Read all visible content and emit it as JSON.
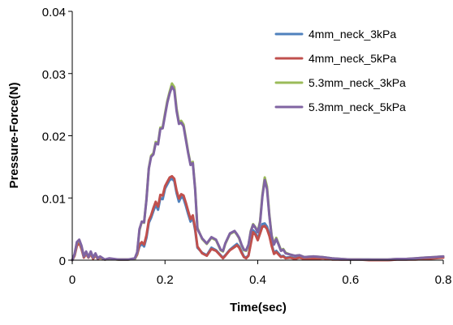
{
  "chart_data": {
    "type": "line",
    "title": "",
    "xlabel": "Time(sec)",
    "ylabel": "Pressure-Force(N)",
    "xlim": [
      0,
      0.8
    ],
    "ylim": [
      0,
      0.04
    ],
    "xticks": [
      {
        "value": 0,
        "label": "0"
      },
      {
        "value": 0.2,
        "label": "0.2"
      },
      {
        "value": 0.4,
        "label": "0.4"
      },
      {
        "value": 0.6,
        "label": "0.6"
      },
      {
        "value": 0.8,
        "label": "0.8"
      }
    ],
    "yticks": [
      {
        "value": 0,
        "label": "0"
      },
      {
        "value": 0.01,
        "label": "0.01"
      },
      {
        "value": 0.02,
        "label": "0.02"
      },
      {
        "value": 0.03,
        "label": "0.03"
      },
      {
        "value": 0.04,
        "label": "0.04"
      }
    ],
    "grid": false,
    "legend_position": "top-right",
    "series": [
      {
        "name": "4mm_neck_3kPa",
        "color": "#4f81bd",
        "x": [
          0,
          0.005,
          0.01,
          0.015,
          0.02,
          0.025,
          0.03,
          0.035,
          0.04,
          0.045,
          0.05,
          0.055,
          0.06,
          0.07,
          0.08,
          0.1,
          0.12,
          0.135,
          0.14,
          0.145,
          0.15,
          0.155,
          0.16,
          0.165,
          0.17,
          0.175,
          0.18,
          0.185,
          0.19,
          0.195,
          0.2,
          0.205,
          0.21,
          0.215,
          0.22,
          0.225,
          0.23,
          0.235,
          0.24,
          0.245,
          0.25,
          0.255,
          0.26,
          0.265,
          0.27,
          0.28,
          0.29,
          0.3,
          0.31,
          0.32,
          0.325,
          0.33,
          0.34,
          0.35,
          0.355,
          0.36,
          0.365,
          0.37,
          0.375,
          0.38,
          0.385,
          0.39,
          0.395,
          0.4,
          0.405,
          0.41,
          0.415,
          0.42,
          0.425,
          0.43,
          0.435,
          0.44,
          0.445,
          0.45,
          0.455,
          0.46,
          0.47,
          0.48,
          0.49,
          0.5,
          0.52,
          0.54,
          0.56,
          0.58,
          0.6,
          0.62,
          0.64,
          0.66,
          0.68,
          0.7,
          0.72,
          0.74,
          0.76,
          0.78,
          0.8
        ],
        "values": [
          0,
          0.0008,
          0.0025,
          0.003,
          0.002,
          0.0005,
          0.0012,
          0.0005,
          0.0012,
          0.0003,
          0.0009,
          0.0003,
          0.0005,
          0.0001,
          0.0002,
          0.0001,
          0.0001,
          0.0002,
          0.001,
          0.0022,
          0.0026,
          0.0022,
          0.0036,
          0.006,
          0.0068,
          0.0079,
          0.0089,
          0.0081,
          0.01,
          0.0098,
          0.0115,
          0.0122,
          0.0129,
          0.0131,
          0.0127,
          0.0108,
          0.0094,
          0.0102,
          0.0099,
          0.0087,
          0.0074,
          0.0062,
          0.0068,
          0.0048,
          0.002,
          0.0012,
          0.0008,
          0.002,
          0.0016,
          0.0008,
          0.0004,
          0.0008,
          0.0017,
          0.0023,
          0.0026,
          0.0022,
          0.0014,
          0.0006,
          0.0004,
          0.0008,
          0.0028,
          0.0048,
          0.0044,
          0.0035,
          0.0046,
          0.0058,
          0.0059,
          0.0054,
          0.0042,
          0.0026,
          0.0012,
          0.0015,
          0.0011,
          0.0006,
          0.0007,
          0.0004,
          0.0005,
          0.0003,
          0.0005,
          0.0002,
          0.0003,
          0.0004,
          0.0002,
          0.0001,
          0.0001,
          0.0001,
          0.0001,
          0,
          0,
          0.0001,
          0.0001,
          0.0002,
          0.0003,
          0.0004,
          0.0005
        ]
      },
      {
        "name": "4mm_neck_5kPa",
        "color": "#c0504d",
        "x": [
          0,
          0.005,
          0.01,
          0.015,
          0.02,
          0.025,
          0.03,
          0.035,
          0.04,
          0.045,
          0.05,
          0.055,
          0.06,
          0.07,
          0.08,
          0.1,
          0.12,
          0.135,
          0.14,
          0.145,
          0.15,
          0.155,
          0.16,
          0.165,
          0.17,
          0.175,
          0.18,
          0.185,
          0.19,
          0.195,
          0.2,
          0.205,
          0.21,
          0.215,
          0.22,
          0.225,
          0.23,
          0.235,
          0.24,
          0.245,
          0.25,
          0.255,
          0.26,
          0.265,
          0.27,
          0.28,
          0.29,
          0.3,
          0.31,
          0.32,
          0.325,
          0.33,
          0.34,
          0.35,
          0.355,
          0.36,
          0.365,
          0.37,
          0.375,
          0.38,
          0.385,
          0.39,
          0.395,
          0.4,
          0.405,
          0.41,
          0.415,
          0.42,
          0.425,
          0.43,
          0.435,
          0.44,
          0.445,
          0.45,
          0.455,
          0.46,
          0.47,
          0.48,
          0.49,
          0.5,
          0.52,
          0.54,
          0.56,
          0.58,
          0.6,
          0.62,
          0.64,
          0.66,
          0.68,
          0.7,
          0.72,
          0.74,
          0.76,
          0.78,
          0.8
        ],
        "values": [
          0,
          0.0007,
          0.0023,
          0.0028,
          0.0018,
          0.0004,
          0.001,
          0.0004,
          0.001,
          0.0002,
          0.0008,
          0.0002,
          0.0004,
          0.0001,
          0.0002,
          0.0001,
          0.0001,
          0.0002,
          0.0009,
          0.0025,
          0.0029,
          0.0025,
          0.004,
          0.0064,
          0.0072,
          0.0084,
          0.0094,
          0.0086,
          0.0105,
          0.0104,
          0.0119,
          0.0126,
          0.0133,
          0.0135,
          0.0131,
          0.0112,
          0.0099,
          0.0106,
          0.0104,
          0.0092,
          0.0079,
          0.0066,
          0.0072,
          0.0051,
          0.0022,
          0.0011,
          0.0007,
          0.0018,
          0.0015,
          0.0007,
          0.0003,
          0.0007,
          0.0016,
          0.0021,
          0.0024,
          0.002,
          0.0012,
          0.0005,
          0.0003,
          0.0007,
          0.0026,
          0.0045,
          0.0041,
          0.0032,
          0.0043,
          0.0054,
          0.0055,
          0.005,
          0.0039,
          0.0023,
          0.001,
          0.0013,
          0.0009,
          0.0005,
          0.0006,
          0.0003,
          0.0004,
          0.0002,
          0.0004,
          0.0002,
          0.0002,
          0.0003,
          0.0001,
          0.0001,
          0.0001,
          0.0001,
          0,
          0,
          0,
          0.0001,
          0.0001,
          0.0001,
          0.0002,
          0.0003,
          0.0004
        ]
      },
      {
        "name": "5.3mm_neck_3kPa",
        "color": "#9bbb59",
        "x": [
          0,
          0.005,
          0.01,
          0.015,
          0.02,
          0.025,
          0.03,
          0.035,
          0.04,
          0.045,
          0.05,
          0.055,
          0.06,
          0.07,
          0.08,
          0.1,
          0.12,
          0.135,
          0.14,
          0.145,
          0.15,
          0.155,
          0.16,
          0.165,
          0.17,
          0.175,
          0.18,
          0.185,
          0.19,
          0.195,
          0.2,
          0.205,
          0.21,
          0.215,
          0.22,
          0.225,
          0.23,
          0.235,
          0.24,
          0.245,
          0.25,
          0.255,
          0.26,
          0.265,
          0.27,
          0.28,
          0.29,
          0.3,
          0.31,
          0.32,
          0.325,
          0.33,
          0.34,
          0.35,
          0.355,
          0.36,
          0.365,
          0.37,
          0.375,
          0.38,
          0.385,
          0.39,
          0.395,
          0.4,
          0.405,
          0.41,
          0.415,
          0.42,
          0.425,
          0.43,
          0.435,
          0.44,
          0.445,
          0.45,
          0.455,
          0.46,
          0.47,
          0.48,
          0.49,
          0.5,
          0.52,
          0.54,
          0.56,
          0.58,
          0.6,
          0.62,
          0.64,
          0.66,
          0.68,
          0.7,
          0.72,
          0.74,
          0.76,
          0.78,
          0.8
        ],
        "values": [
          0,
          0.0009,
          0.0028,
          0.0032,
          0.0022,
          0.0006,
          0.0013,
          0.0005,
          0.0013,
          0.0004,
          0.001,
          0.0003,
          0.0005,
          0.0001,
          0.0002,
          0.0001,
          0.0001,
          0.0002,
          0.0012,
          0.0048,
          0.0062,
          0.006,
          0.0098,
          0.0148,
          0.0168,
          0.0172,
          0.019,
          0.0188,
          0.0213,
          0.0214,
          0.0236,
          0.0256,
          0.0271,
          0.0284,
          0.0278,
          0.0244,
          0.0222,
          0.0224,
          0.0218,
          0.0196,
          0.0174,
          0.0155,
          0.0158,
          0.0115,
          0.0052,
          0.0034,
          0.0026,
          0.0036,
          0.0032,
          0.0016,
          0.0014,
          0.0026,
          0.0042,
          0.0046,
          0.0041,
          0.0035,
          0.0024,
          0.0016,
          0.0015,
          0.0024,
          0.0047,
          0.0058,
          0.0053,
          0.0046,
          0.0063,
          0.0105,
          0.0133,
          0.0118,
          0.0073,
          0.004,
          0.0026,
          0.0036,
          0.0026,
          0.0016,
          0.0018,
          0.0012,
          0.0009,
          0.0007,
          0.0008,
          0.0005,
          0.0006,
          0.0005,
          0.0003,
          0.0002,
          0.0001,
          0.0001,
          0.0001,
          0.0001,
          0.0001,
          0.0002,
          0.0002,
          0.0003,
          0.0004,
          0.0005,
          0.0006
        ]
      },
      {
        "name": "5.3mm_neck_5kPa",
        "color": "#8064a2",
        "x": [
          0,
          0.005,
          0.01,
          0.015,
          0.02,
          0.025,
          0.03,
          0.035,
          0.04,
          0.045,
          0.05,
          0.055,
          0.06,
          0.07,
          0.08,
          0.1,
          0.12,
          0.135,
          0.14,
          0.145,
          0.15,
          0.155,
          0.16,
          0.165,
          0.17,
          0.175,
          0.18,
          0.185,
          0.19,
          0.195,
          0.2,
          0.205,
          0.21,
          0.215,
          0.22,
          0.225,
          0.23,
          0.235,
          0.24,
          0.245,
          0.25,
          0.255,
          0.26,
          0.265,
          0.27,
          0.28,
          0.29,
          0.3,
          0.31,
          0.32,
          0.325,
          0.33,
          0.34,
          0.35,
          0.355,
          0.36,
          0.365,
          0.37,
          0.375,
          0.38,
          0.385,
          0.39,
          0.395,
          0.4,
          0.405,
          0.41,
          0.415,
          0.42,
          0.425,
          0.43,
          0.435,
          0.44,
          0.445,
          0.45,
          0.455,
          0.46,
          0.47,
          0.48,
          0.49,
          0.5,
          0.52,
          0.54,
          0.56,
          0.58,
          0.6,
          0.62,
          0.64,
          0.66,
          0.68,
          0.7,
          0.72,
          0.74,
          0.76,
          0.78,
          0.8
        ],
        "values": [
          0,
          0.001,
          0.0029,
          0.0033,
          0.0023,
          0.0006,
          0.0014,
          0.0005,
          0.0014,
          0.0004,
          0.0011,
          0.0003,
          0.0006,
          0.0001,
          0.0003,
          0.0001,
          0.0001,
          0.0003,
          0.0013,
          0.005,
          0.0062,
          0.0061,
          0.0097,
          0.0147,
          0.0166,
          0.017,
          0.0188,
          0.0186,
          0.0211,
          0.0212,
          0.0233,
          0.0253,
          0.0268,
          0.0279,
          0.0273,
          0.024,
          0.0219,
          0.0221,
          0.0215,
          0.0193,
          0.0172,
          0.0153,
          0.0156,
          0.0113,
          0.005,
          0.0035,
          0.0027,
          0.0037,
          0.0033,
          0.0017,
          0.0015,
          0.0027,
          0.0043,
          0.0047,
          0.0042,
          0.0036,
          0.0025,
          0.0017,
          0.0016,
          0.0025,
          0.0046,
          0.0057,
          0.0052,
          0.0045,
          0.0061,
          0.0102,
          0.0129,
          0.0114,
          0.0071,
          0.0038,
          0.0025,
          0.0034,
          0.0025,
          0.0015,
          0.0017,
          0.0011,
          0.0009,
          0.0007,
          0.0008,
          0.0005,
          0.0006,
          0.0005,
          0.0003,
          0.0002,
          0.0001,
          0.0001,
          0.0001,
          0.0001,
          0.0001,
          0.0002,
          0.0002,
          0.0003,
          0.0004,
          0.0005,
          0.0006
        ]
      }
    ]
  }
}
